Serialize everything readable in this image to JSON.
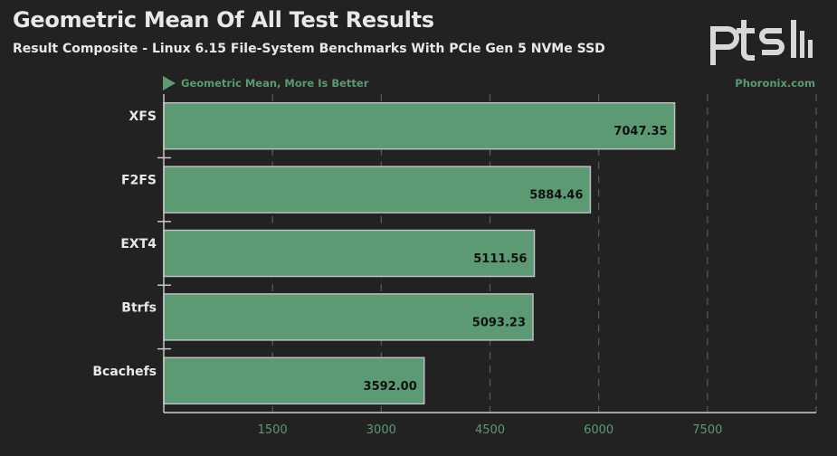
{
  "header": {
    "title": "Geometric Mean Of All Test Results",
    "subtitle": "Result Composite - Linux 6.15 File-System Benchmarks With PCIe Gen 5 NVMe SSD",
    "logo_text": "ptsh"
  },
  "legend": {
    "text": "Geometric Mean, More Is Better",
    "watermark": "Phoronix.com"
  },
  "colors": {
    "background": "#222222",
    "bar_fill": "#5b9a72",
    "bar_border": "#bdbdbd",
    "text": "#e8e8e8",
    "accent": "#5b9a72",
    "grid": "#5a5a5a"
  },
  "chart_data": {
    "type": "bar",
    "orientation": "horizontal",
    "title": "Geometric Mean Of All Test Results",
    "subtitle": "Result Composite - Linux 6.15 File-System Benchmarks With PCIe Gen 5 NVMe SSD",
    "xlabel": "",
    "ylabel": "",
    "categories": [
      "XFS",
      "F2FS",
      "EXT4",
      "Btrfs",
      "Bcachefs"
    ],
    "values": [
      7047.35,
      5884.46,
      5111.56,
      5093.23,
      3592.0
    ],
    "value_labels": [
      "7047.35",
      "5884.46",
      "5111.56",
      "5093.23",
      "3592.00"
    ],
    "xlim": [
      0,
      9000
    ],
    "xticks": [
      1500,
      3000,
      4500,
      6000,
      7500
    ],
    "xtick_labels": [
      "1500",
      "3000",
      "4500",
      "6000",
      "7500"
    ],
    "grid": true
  }
}
